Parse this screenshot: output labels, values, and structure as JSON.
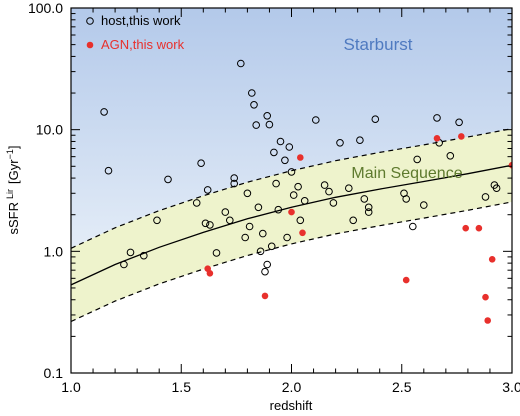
{
  "chart_data": {
    "type": "scatter",
    "xlabel": "redshift",
    "ylabel": "sSFR Lir [Gyr⁻¹]",
    "ylabel_main": "sSFR",
    "ylabel_sup": "Lir",
    "ylabel_unit": "[Gyr",
    "ylabel_exp": "−1",
    "ylabel_close": "]",
    "xlim": [
      1.0,
      3.0
    ],
    "ylim": [
      0.1,
      100.0
    ],
    "yscale": "log",
    "grid": false,
    "legend_position": "top-left",
    "x_ticks": [
      1.0,
      1.5,
      2.0,
      2.5,
      3.0
    ],
    "x_tick_labels": [
      "1.0",
      "1.5",
      "2.0",
      "2.5",
      "3.0"
    ],
    "y_ticks": [
      0.1,
      1.0,
      10.0,
      100.0
    ],
    "y_tick_labels": [
      "0.1",
      "1.0",
      "10.0",
      "100.0"
    ],
    "annotations": [
      {
        "text": "Starburst",
        "color": "#4f7ac0"
      },
      {
        "text": "Main Sequence",
        "color": "#5e7a2e"
      }
    ],
    "regions": {
      "starburst_fill_top": "#b3c9ea",
      "starburst_fill_bottom": "#e3ecf7",
      "main_sequence_fill": "#eef3cc"
    },
    "main_sequence": {
      "x": [
        1.0,
        1.2,
        1.4,
        1.6,
        1.8,
        2.0,
        2.2,
        2.4,
        2.6,
        2.8,
        3.0
      ],
      "median": [
        0.53,
        0.78,
        1.08,
        1.43,
        1.85,
        2.3,
        2.78,
        3.25,
        3.75,
        4.35,
        5.1
      ],
      "upper": [
        1.06,
        1.56,
        2.16,
        2.86,
        3.7,
        4.6,
        5.56,
        6.5,
        7.5,
        8.7,
        10.2
      ],
      "lower": [
        0.265,
        0.39,
        0.54,
        0.715,
        0.925,
        1.15,
        1.39,
        1.625,
        1.875,
        2.175,
        2.55
      ]
    },
    "series": [
      {
        "name": "host,this work",
        "marker": "open-circle",
        "color": "#000000",
        "points": [
          [
            1.15,
            14.0
          ],
          [
            1.17,
            4.6
          ],
          [
            1.24,
            0.78
          ],
          [
            1.27,
            0.98
          ],
          [
            1.33,
            0.92
          ],
          [
            1.39,
            1.8
          ],
          [
            1.44,
            3.9
          ],
          [
            1.57,
            2.5
          ],
          [
            1.59,
            5.3
          ],
          [
            1.61,
            1.7
          ],
          [
            1.62,
            3.2
          ],
          [
            1.63,
            1.65
          ],
          [
            1.66,
            0.97
          ],
          [
            1.7,
            2.1
          ],
          [
            1.72,
            1.8
          ],
          [
            1.74,
            4.0
          ],
          [
            1.74,
            3.6
          ],
          [
            1.77,
            35.0
          ],
          [
            1.79,
            1.3
          ],
          [
            1.8,
            3.0
          ],
          [
            1.81,
            1.6
          ],
          [
            1.82,
            20.0
          ],
          [
            1.83,
            16.0
          ],
          [
            1.84,
            10.9
          ],
          [
            1.85,
            2.3
          ],
          [
            1.86,
            1.0
          ],
          [
            1.87,
            1.4
          ],
          [
            1.88,
            0.68
          ],
          [
            1.89,
            13.0
          ],
          [
            1.89,
            0.78
          ],
          [
            1.9,
            11.0
          ],
          [
            1.91,
            1.1
          ],
          [
            1.92,
            6.5
          ],
          [
            1.93,
            3.6
          ],
          [
            1.94,
            2.2
          ],
          [
            1.95,
            8.0
          ],
          [
            1.97,
            5.6
          ],
          [
            1.98,
            1.3
          ],
          [
            1.99,
            7.2
          ],
          [
            2.0,
            4.5
          ],
          [
            2.01,
            2.9
          ],
          [
            2.03,
            3.4
          ],
          [
            2.04,
            1.8
          ],
          [
            2.06,
            2.6
          ],
          [
            2.11,
            12.0
          ],
          [
            2.15,
            3.5
          ],
          [
            2.17,
            3.1
          ],
          [
            2.19,
            2.5
          ],
          [
            2.22,
            7.8
          ],
          [
            2.26,
            3.3
          ],
          [
            2.28,
            1.8
          ],
          [
            2.31,
            8.2
          ],
          [
            2.33,
            2.7
          ],
          [
            2.35,
            2.3
          ],
          [
            2.35,
            2.1
          ],
          [
            2.38,
            12.2
          ],
          [
            2.51,
            3.0
          ],
          [
            2.52,
            2.7
          ],
          [
            2.55,
            1.6
          ],
          [
            2.57,
            5.7
          ],
          [
            2.6,
            2.4
          ],
          [
            2.66,
            12.5
          ],
          [
            2.67,
            7.8
          ],
          [
            2.72,
            6.1
          ],
          [
            2.76,
            11.5
          ],
          [
            2.88,
            2.8
          ],
          [
            2.92,
            3.5
          ],
          [
            2.93,
            3.3
          ]
        ]
      },
      {
        "name": "AGN,this work",
        "marker": "filled-circle",
        "color": "#e8302c",
        "points": [
          [
            1.62,
            0.72
          ],
          [
            1.63,
            0.66
          ],
          [
            1.88,
            0.43
          ],
          [
            2.0,
            2.1
          ],
          [
            2.04,
            5.9
          ],
          [
            2.05,
            1.42
          ],
          [
            2.52,
            0.58
          ],
          [
            2.66,
            8.5
          ],
          [
            2.77,
            8.8
          ],
          [
            2.79,
            1.55
          ],
          [
            2.85,
            1.55
          ],
          [
            2.88,
            0.42
          ],
          [
            2.89,
            0.27
          ],
          [
            2.91,
            0.86
          ],
          [
            3.0,
            5.1
          ]
        ]
      }
    ]
  }
}
